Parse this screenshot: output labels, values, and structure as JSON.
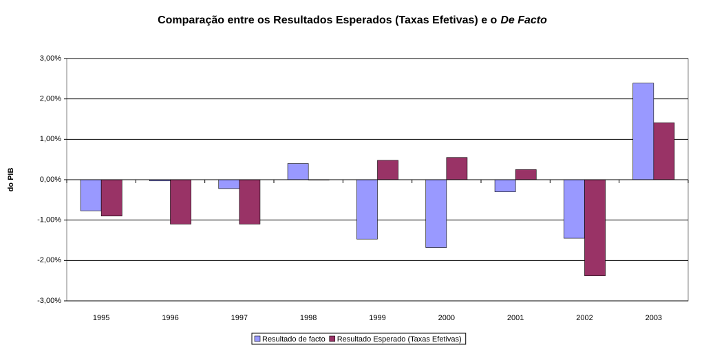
{
  "chart_data": {
    "type": "bar",
    "title": {
      "text": "Comparação entre os Resultados Esperados (Taxas Efetivas) e o",
      "emphasis": "De Facto"
    },
    "ylabel": "do PIB",
    "categories": [
      "1995",
      "1996",
      "1997",
      "1998",
      "1999",
      "2000",
      "2001",
      "2002",
      "2003"
    ],
    "series": [
      {
        "name": "Resultado de facto",
        "color": "#9999ff",
        "values": [
          -0.77,
          -0.03,
          -0.22,
          0.4,
          -1.47,
          -1.68,
          -0.3,
          -1.45,
          2.39
        ]
      },
      {
        "name": "Resultado Esperado (Taxas Efetivas)",
        "color": "#993366",
        "values": [
          -0.9,
          -1.1,
          -1.1,
          -0.01,
          0.48,
          0.55,
          0.25,
          -2.38,
          1.41
        ]
      }
    ],
    "ylim": [
      -3,
      3
    ],
    "yticks": [
      {
        "value": -3,
        "label": "-3,00%"
      },
      {
        "value": -2,
        "label": "-2,00%"
      },
      {
        "value": -1,
        "label": "-1,00%"
      },
      {
        "value": 0,
        "label": "0,00%"
      },
      {
        "value": 1,
        "label": "1,00%"
      },
      {
        "value": 2,
        "label": "2,00%"
      },
      {
        "value": 3,
        "label": "3,00%"
      }
    ],
    "grid": true,
    "legend": "bottom"
  }
}
